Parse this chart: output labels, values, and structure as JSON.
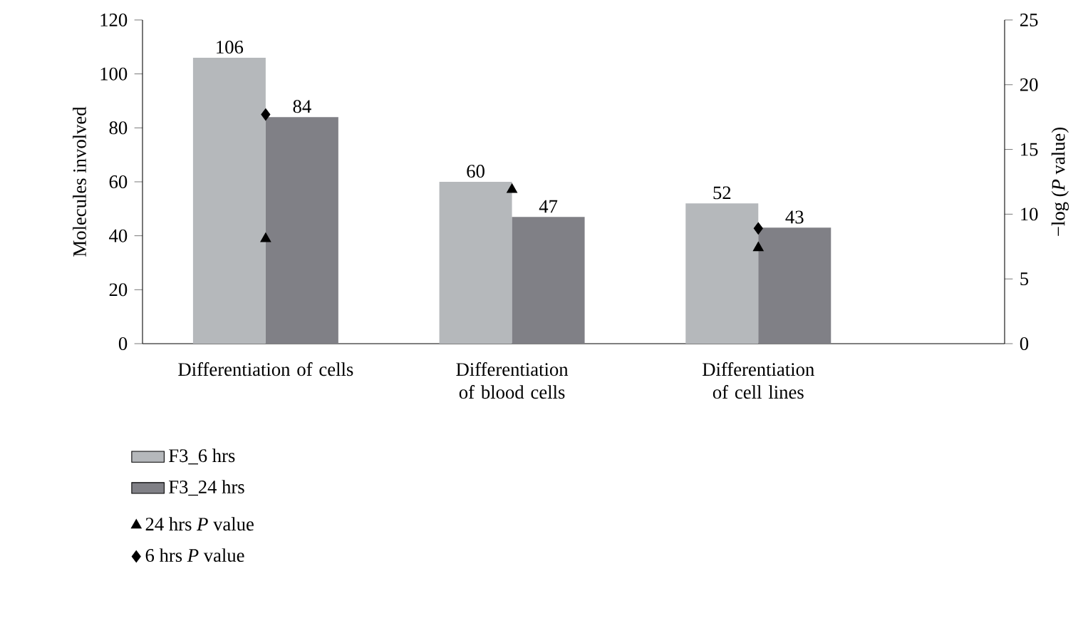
{
  "chart_data": {
    "type": "bar",
    "categories": [
      "Differentiation of cells",
      "Differentiation of blood cells",
      "Differentiation of cell lines"
    ],
    "ylabel": "Molecules involved",
    "y2label": "−log (*P* value)",
    "ylim": [
      0,
      120
    ],
    "yticks": [
      0,
      20,
      40,
      60,
      80,
      100,
      120
    ],
    "y2lim": [
      0,
      25
    ],
    "y2ticks": [
      0,
      5,
      10,
      15,
      20,
      25
    ],
    "legend": "bottom left",
    "series": [
      {
        "name": "F3_6 hrs",
        "color": "#b5b8bb",
        "values": [
          106,
          60,
          52
        ],
        "value_labels": [
          "106",
          "60",
          "52"
        ]
      },
      {
        "name": "F3_24 hrs",
        "color": "#808086",
        "values": [
          84,
          47,
          43
        ],
        "value_labels": [
          "84",
          "47",
          "43"
        ]
      },
      {
        "name": "24 hrs *P* value",
        "type": "scatter",
        "axis": "y2",
        "marker": "triangle",
        "color": "#000000",
        "values": [
          8.1,
          11.9,
          7.4
        ]
      },
      {
        "name": "6 hrs *P* value",
        "type": "scatter",
        "axis": "y2",
        "marker": "diamond",
        "color": "#000000",
        "values": [
          17.7,
          null,
          8.9
        ]
      }
    ]
  }
}
